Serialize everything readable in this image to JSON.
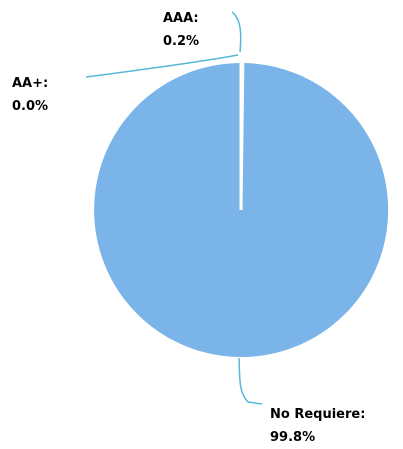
{
  "chart_data": {
    "type": "pie",
    "title": "",
    "slices": [
      {
        "label": "No Requiere",
        "value": 99.8,
        "display": "99.8%",
        "color": "#7ab4e8"
      },
      {
        "label": "AAA",
        "value": 0.2,
        "display": "0.2%",
        "color": "#7ab4e8"
      },
      {
        "label": "AA+",
        "value": 0.0,
        "display": "0.0%",
        "color": "#7ab4e8"
      }
    ],
    "leader_color": "#56b7d6",
    "separator_color": "#ffffff",
    "legend": "none"
  }
}
